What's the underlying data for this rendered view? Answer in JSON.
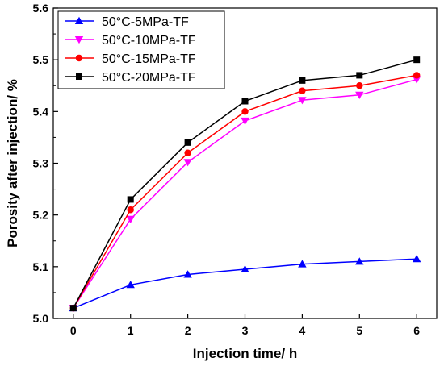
{
  "chart_data": {
    "type": "line",
    "xlabel": "Injection time/ h",
    "ylabel": "Porosity after injection/ %",
    "x": [
      0,
      1,
      2,
      3,
      4,
      5,
      6
    ],
    "xlim": [
      -0.35,
      6.35
    ],
    "ylim": [
      5.0,
      5.6
    ],
    "xticks": [
      "0",
      "1",
      "2",
      "3",
      "4",
      "5",
      "6"
    ],
    "yticks": [
      "5.0",
      "5.1",
      "5.2",
      "5.3",
      "5.4",
      "5.5",
      "5.6"
    ],
    "grid": false,
    "legend_position": "top-left",
    "series": [
      {
        "name": "50°C-5MPa-TF",
        "color": "#0000ff",
        "marker": "triangle-up",
        "values": [
          5.02,
          5.065,
          5.085,
          5.095,
          5.105,
          5.11,
          5.115
        ]
      },
      {
        "name": "50°C-10MPa-TF",
        "color": "#ff00ff",
        "marker": "triangle-down",
        "values": [
          5.02,
          5.192,
          5.302,
          5.382,
          5.422,
          5.432,
          5.462
        ]
      },
      {
        "name": "50°C-15MPa-TF",
        "color": "#ff0000",
        "marker": "circle",
        "values": [
          5.02,
          5.21,
          5.32,
          5.4,
          5.44,
          5.45,
          5.47
        ]
      },
      {
        "name": "50°C-20MPa-TF",
        "color": "#000000",
        "marker": "square",
        "values": [
          5.02,
          5.23,
          5.34,
          5.42,
          5.46,
          5.47,
          5.5
        ]
      }
    ]
  }
}
